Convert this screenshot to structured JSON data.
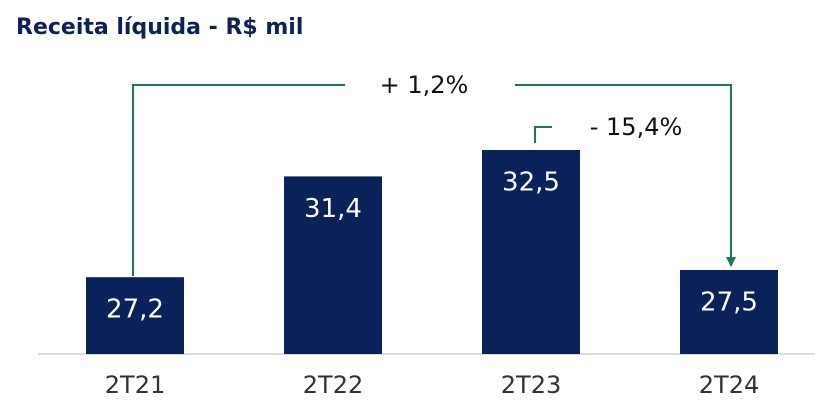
{
  "chart_data": {
    "type": "bar",
    "title": "Receita líquida - R$ mil",
    "categories": [
      "2T21",
      "2T22",
      "2T23",
      "2T24"
    ],
    "values": [
      27.2,
      31.4,
      32.5,
      27.5
    ],
    "value_labels": [
      "27,2",
      "31,4",
      "32,5",
      "27,5"
    ],
    "color": "#0b2159",
    "ylim": [
      24,
      37.5
    ],
    "annotations": [
      "+ 1,2%",
      "- 15,4%"
    ]
  }
}
